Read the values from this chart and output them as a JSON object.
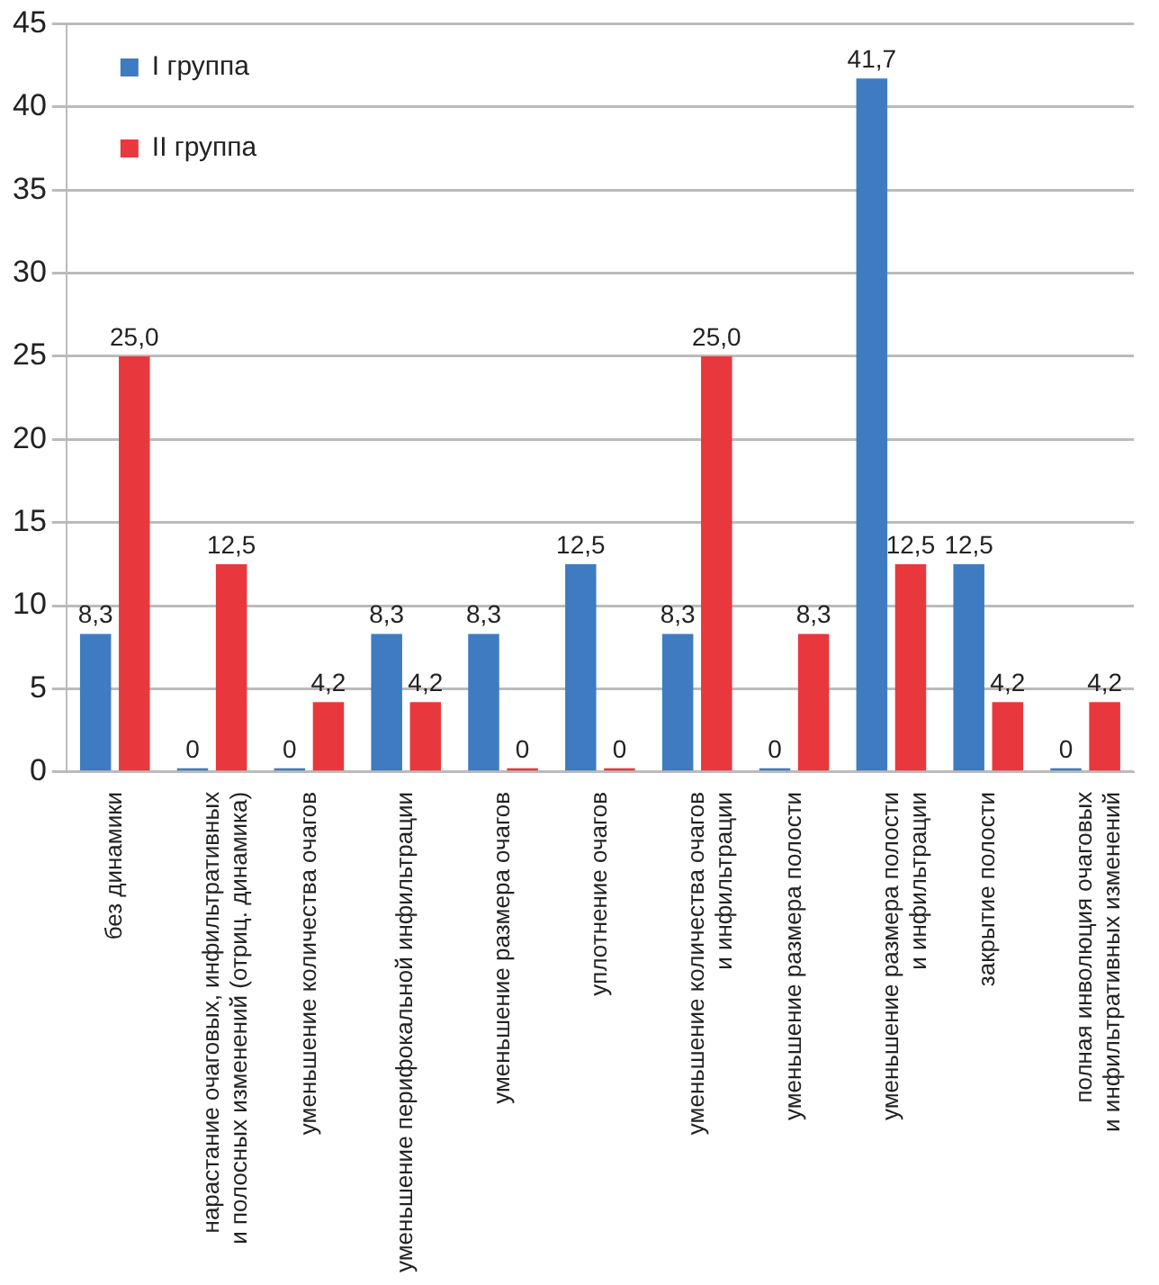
{
  "chart_data": {
    "type": "bar",
    "categories": [
      "без динамики",
      "нарастание очаговых, инфильтративных\nи полосных изменений (отриц. динамика)",
      "уменьшение количества очагов",
      "уменьшение перифокальной инфильтрации",
      "уменьшение размера очагов",
      "уплотнение очагов",
      "уменьшение количества очагов\nи инфильтрации",
      "уменьшение размера полости",
      "уменьшение размера полости\nи инфильтрации",
      "закрытие полости",
      "полная инволюция очаговых\nи инфильтративных изменений"
    ],
    "series": [
      {
        "name": "I группа",
        "color": "#3f7bc1",
        "values": [
          8.3,
          0,
          0,
          8.3,
          8.3,
          12.5,
          8.3,
          0,
          41.7,
          12.5,
          0
        ],
        "value_labels": [
          "8,3",
          "0",
          "0",
          "8,3",
          "8,3",
          "12,5",
          "8,3",
          "0",
          "41,7",
          "12,5",
          "0"
        ]
      },
      {
        "name": "II группа",
        "color": "#e8383d",
        "values": [
          25.0,
          12.5,
          4.2,
          4.2,
          0,
          0,
          25.0,
          8.3,
          12.5,
          4.2,
          4.2
        ],
        "value_labels": [
          "25,0",
          "12,5",
          "4,2",
          "4,2",
          "0",
          "0",
          "25,0",
          "8,3",
          "12,5",
          "4,2",
          "4,2"
        ]
      }
    ],
    "ylim": [
      0,
      45
    ],
    "yticks": [
      0,
      5,
      10,
      15,
      20,
      25,
      30,
      35,
      40,
      45
    ],
    "grid": "y",
    "legend": "top left"
  }
}
